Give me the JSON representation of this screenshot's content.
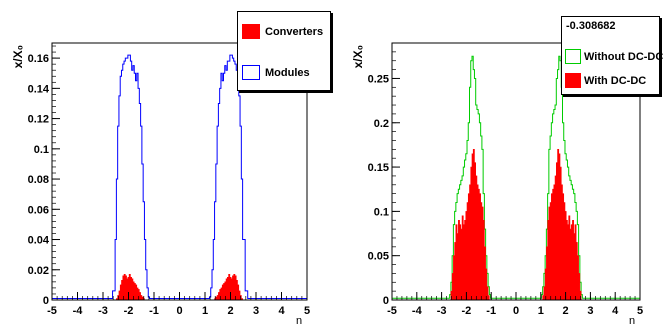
{
  "chart_data": [
    {
      "type": "histogram",
      "xlabel": "η",
      "ylabel": "x/X₀",
      "xlim": [
        -5,
        5
      ],
      "ylim": [
        0,
        0.17
      ],
      "x_ticks": [
        -5,
        -4,
        -3,
        -2,
        -1,
        0,
        1,
        2,
        3,
        4,
        5
      ],
      "y_ticks": [
        0,
        0.02,
        0.04,
        0.06,
        0.08,
        0.1,
        0.12,
        0.14,
        0.16
      ],
      "y_tick_labels": [
        "0",
        "0.02",
        "0.04",
        "0.06",
        "0.08",
        "0.1",
        "0.12",
        "0.14",
        "0.16"
      ],
      "bin_width": 0.05,
      "legend_title": "",
      "legend": [
        {
          "label": "Converters",
          "style": "filled",
          "color": "#ff0000"
        },
        {
          "label": "Modules",
          "style": "outline",
          "color": "#0000ff"
        }
      ],
      "series": [
        {
          "name": "Modules",
          "style": "outline",
          "color": "#0000ff",
          "points": [
            [
              -5,
              0.001
            ],
            [
              -2.7,
              0.001
            ],
            [
              -2.6,
              0.006
            ],
            [
              -2.5,
              0.04
            ],
            [
              -2.45,
              0.08
            ],
            [
              -2.4,
              0.115
            ],
            [
              -2.35,
              0.135
            ],
            [
              -2.3,
              0.148
            ],
            [
              -2.25,
              0.152
            ],
            [
              -2.2,
              0.156
            ],
            [
              -2.15,
              0.158
            ],
            [
              -2.1,
              0.16
            ],
            [
              -2.0,
              0.162
            ],
            [
              -1.9,
              0.158
            ],
            [
              -1.85,
              0.152
            ],
            [
              -1.8,
              0.155
            ],
            [
              -1.75,
              0.15
            ],
            [
              -1.7,
              0.145
            ],
            [
              -1.65,
              0.15
            ],
            [
              -1.6,
              0.14
            ],
            [
              -1.55,
              0.13
            ],
            [
              -1.5,
              0.115
            ],
            [
              -1.45,
              0.09
            ],
            [
              -1.4,
              0.065
            ],
            [
              -1.35,
              0.04
            ],
            [
              -1.3,
              0.02
            ],
            [
              -1.25,
              0.008
            ],
            [
              -1.2,
              0.002
            ],
            [
              -1.15,
              0.001
            ],
            [
              1.15,
              0.001
            ],
            [
              1.2,
              0.002
            ],
            [
              1.25,
              0.008
            ],
            [
              1.3,
              0.02
            ],
            [
              1.35,
              0.04
            ],
            [
              1.4,
              0.065
            ],
            [
              1.45,
              0.09
            ],
            [
              1.5,
              0.115
            ],
            [
              1.55,
              0.13
            ],
            [
              1.6,
              0.14
            ],
            [
              1.65,
              0.15
            ],
            [
              1.7,
              0.145
            ],
            [
              1.75,
              0.15
            ],
            [
              1.8,
              0.155
            ],
            [
              1.85,
              0.152
            ],
            [
              1.9,
              0.158
            ],
            [
              2.0,
              0.162
            ],
            [
              2.1,
              0.16
            ],
            [
              2.15,
              0.158
            ],
            [
              2.2,
              0.156
            ],
            [
              2.25,
              0.152
            ],
            [
              2.3,
              0.148
            ],
            [
              2.35,
              0.135
            ],
            [
              2.4,
              0.115
            ],
            [
              2.45,
              0.08
            ],
            [
              2.5,
              0.04
            ],
            [
              2.6,
              0.006
            ],
            [
              2.7,
              0.001
            ],
            [
              5,
              0.001
            ]
          ]
        },
        {
          "name": "Converters",
          "style": "filled",
          "color": "#ff0000",
          "points": [
            [
              -2.5,
              0.0
            ],
            [
              -2.45,
              0.001
            ],
            [
              -2.4,
              0.003
            ],
            [
              -2.35,
              0.006
            ],
            [
              -2.3,
              0.01
            ],
            [
              -2.25,
              0.013
            ],
            [
              -2.2,
              0.016
            ],
            [
              -2.15,
              0.017
            ],
            [
              -2.1,
              0.016
            ],
            [
              -2.05,
              0.014
            ],
            [
              -2.0,
              0.015
            ],
            [
              -1.95,
              0.017
            ],
            [
              -1.9,
              0.015
            ],
            [
              -1.85,
              0.014
            ],
            [
              -1.8,
              0.012
            ],
            [
              -1.75,
              0.011
            ],
            [
              -1.7,
              0.01
            ],
            [
              -1.65,
              0.008
            ],
            [
              -1.6,
              0.007
            ],
            [
              -1.55,
              0.005
            ],
            [
              -1.5,
              0.003
            ],
            [
              -1.45,
              0.002
            ],
            [
              -1.4,
              0.001
            ],
            [
              -1.35,
              0.0
            ],
            [
              1.35,
              0.0
            ],
            [
              1.4,
              0.001
            ],
            [
              1.45,
              0.002
            ],
            [
              1.5,
              0.003
            ],
            [
              1.55,
              0.005
            ],
            [
              1.6,
              0.007
            ],
            [
              1.65,
              0.008
            ],
            [
              1.7,
              0.01
            ],
            [
              1.75,
              0.011
            ],
            [
              1.8,
              0.012
            ],
            [
              1.85,
              0.014
            ],
            [
              1.9,
              0.015
            ],
            [
              1.95,
              0.017
            ],
            [
              2.0,
              0.015
            ],
            [
              2.05,
              0.014
            ],
            [
              2.1,
              0.016
            ],
            [
              2.15,
              0.017
            ],
            [
              2.2,
              0.016
            ],
            [
              2.25,
              0.013
            ],
            [
              2.3,
              0.01
            ],
            [
              2.35,
              0.006
            ],
            [
              2.4,
              0.003
            ],
            [
              2.45,
              0.001
            ],
            [
              2.5,
              0.0
            ]
          ]
        }
      ]
    },
    {
      "type": "histogram",
      "xlabel": "η",
      "ylabel": "x/X₀",
      "xlim": [
        -5,
        5
      ],
      "ylim": [
        0,
        0.29
      ],
      "x_ticks": [
        -5,
        -4,
        -3,
        -2,
        -1,
        0,
        1,
        2,
        3,
        4,
        5
      ],
      "y_ticks": [
        0,
        0.05,
        0.1,
        0.15,
        0.2,
        0.25
      ],
      "y_tick_labels": [
        "0",
        "0.05",
        "0.1",
        "0.15",
        "0.2",
        "0.25"
      ],
      "bin_width": 0.05,
      "legend_title": "-0.308682",
      "legend": [
        {
          "label": "Without DC-DC",
          "style": "outline",
          "color": "#00cc00"
        },
        {
          "label": "With DC-DC",
          "style": "filled",
          "color": "#ff0000"
        }
      ],
      "series": [
        {
          "name": "Without DC-DC",
          "style": "outline",
          "color": "#00cc00",
          "points": [
            [
              -5,
              0.002
            ],
            [
              -2.7,
              0.002
            ],
            [
              -2.65,
              0.006
            ],
            [
              -2.6,
              0.02
            ],
            [
              -2.55,
              0.05
            ],
            [
              -2.5,
              0.085
            ],
            [
              -2.45,
              0.1
            ],
            [
              -2.4,
              0.11
            ],
            [
              -2.35,
              0.12
            ],
            [
              -2.3,
              0.125
            ],
            [
              -2.25,
              0.13
            ],
            [
              -2.2,
              0.135
            ],
            [
              -2.15,
              0.14
            ],
            [
              -2.1,
              0.15
            ],
            [
              -2.05,
              0.158
            ],
            [
              -2.0,
              0.165
            ],
            [
              -1.95,
              0.18
            ],
            [
              -1.9,
              0.2
            ],
            [
              -1.85,
              0.24
            ],
            [
              -1.8,
              0.27
            ],
            [
              -1.75,
              0.275
            ],
            [
              -1.7,
              0.26
            ],
            [
              -1.65,
              0.25
            ],
            [
              -1.6,
              0.22
            ],
            [
              -1.55,
              0.215
            ],
            [
              -1.5,
              0.21
            ],
            [
              -1.45,
              0.2
            ],
            [
              -1.4,
              0.185
            ],
            [
              -1.35,
              0.17
            ],
            [
              -1.3,
              0.12
            ],
            [
              -1.25,
              0.08
            ],
            [
              -1.2,
              0.05
            ],
            [
              -1.15,
              0.03
            ],
            [
              -1.1,
              0.015
            ],
            [
              -1.05,
              0.006
            ],
            [
              -1.0,
              0.002
            ],
            [
              1.0,
              0.002
            ],
            [
              1.05,
              0.006
            ],
            [
              1.1,
              0.015
            ],
            [
              1.15,
              0.03
            ],
            [
              1.2,
              0.05
            ],
            [
              1.25,
              0.08
            ],
            [
              1.3,
              0.12
            ],
            [
              1.35,
              0.17
            ],
            [
              1.4,
              0.185
            ],
            [
              1.45,
              0.2
            ],
            [
              1.5,
              0.21
            ],
            [
              1.55,
              0.215
            ],
            [
              1.6,
              0.22
            ],
            [
              1.65,
              0.25
            ],
            [
              1.7,
              0.26
            ],
            [
              1.75,
              0.275
            ],
            [
              1.8,
              0.27
            ],
            [
              1.85,
              0.24
            ],
            [
              1.9,
              0.2
            ],
            [
              1.95,
              0.18
            ],
            [
              2.0,
              0.165
            ],
            [
              2.05,
              0.158
            ],
            [
              2.1,
              0.15
            ],
            [
              2.15,
              0.14
            ],
            [
              2.2,
              0.135
            ],
            [
              2.25,
              0.13
            ],
            [
              2.3,
              0.125
            ],
            [
              2.35,
              0.12
            ],
            [
              2.4,
              0.11
            ],
            [
              2.45,
              0.1
            ],
            [
              2.5,
              0.085
            ],
            [
              2.55,
              0.05
            ],
            [
              2.6,
              0.02
            ],
            [
              2.65,
              0.006
            ],
            [
              2.7,
              0.002
            ],
            [
              5,
              0.002
            ]
          ]
        },
        {
          "name": "With DC-DC",
          "style": "filled",
          "color": "#ff0000",
          "points": [
            [
              -2.65,
              0.0
            ],
            [
              -2.6,
              0.01
            ],
            [
              -2.55,
              0.03
            ],
            [
              -2.5,
              0.05
            ],
            [
              -2.45,
              0.065
            ],
            [
              -2.4,
              0.085
            ],
            [
              -2.35,
              0.075
            ],
            [
              -2.3,
              0.09
            ],
            [
              -2.25,
              0.085
            ],
            [
              -2.2,
              0.08
            ],
            [
              -2.15,
              0.095
            ],
            [
              -2.1,
              0.085
            ],
            [
              -2.05,
              0.09
            ],
            [
              -2.0,
              0.1
            ],
            [
              -1.95,
              0.11
            ],
            [
              -1.9,
              0.12
            ],
            [
              -1.85,
              0.13
            ],
            [
              -1.8,
              0.15
            ],
            [
              -1.75,
              0.165
            ],
            [
              -1.7,
              0.17
            ],
            [
              -1.65,
              0.155
            ],
            [
              -1.6,
              0.14
            ],
            [
              -1.55,
              0.13
            ],
            [
              -1.5,
              0.125
            ],
            [
              -1.45,
              0.12
            ],
            [
              -1.4,
              0.11
            ],
            [
              -1.35,
              0.105
            ],
            [
              -1.3,
              0.09
            ],
            [
              -1.25,
              0.06
            ],
            [
              -1.2,
              0.035
            ],
            [
              -1.15,
              0.015
            ],
            [
              -1.1,
              0.005
            ],
            [
              -1.05,
              0.0
            ],
            [
              1.05,
              0.0
            ],
            [
              1.1,
              0.005
            ],
            [
              1.15,
              0.015
            ],
            [
              1.2,
              0.035
            ],
            [
              1.25,
              0.06
            ],
            [
              1.3,
              0.09
            ],
            [
              1.35,
              0.105
            ],
            [
              1.4,
              0.11
            ],
            [
              1.45,
              0.12
            ],
            [
              1.5,
              0.125
            ],
            [
              1.55,
              0.13
            ],
            [
              1.6,
              0.14
            ],
            [
              1.65,
              0.155
            ],
            [
              1.7,
              0.17
            ],
            [
              1.75,
              0.165
            ],
            [
              1.8,
              0.15
            ],
            [
              1.85,
              0.13
            ],
            [
              1.9,
              0.12
            ],
            [
              1.95,
              0.11
            ],
            [
              2.0,
              0.1
            ],
            [
              2.05,
              0.09
            ],
            [
              2.1,
              0.085
            ],
            [
              2.15,
              0.095
            ],
            [
              2.2,
              0.08
            ],
            [
              2.25,
              0.085
            ],
            [
              2.3,
              0.09
            ],
            [
              2.35,
              0.075
            ],
            [
              2.4,
              0.085
            ],
            [
              2.45,
              0.065
            ],
            [
              2.5,
              0.05
            ],
            [
              2.55,
              0.03
            ],
            [
              2.6,
              0.01
            ],
            [
              2.65,
              0.0
            ]
          ]
        }
      ]
    }
  ]
}
